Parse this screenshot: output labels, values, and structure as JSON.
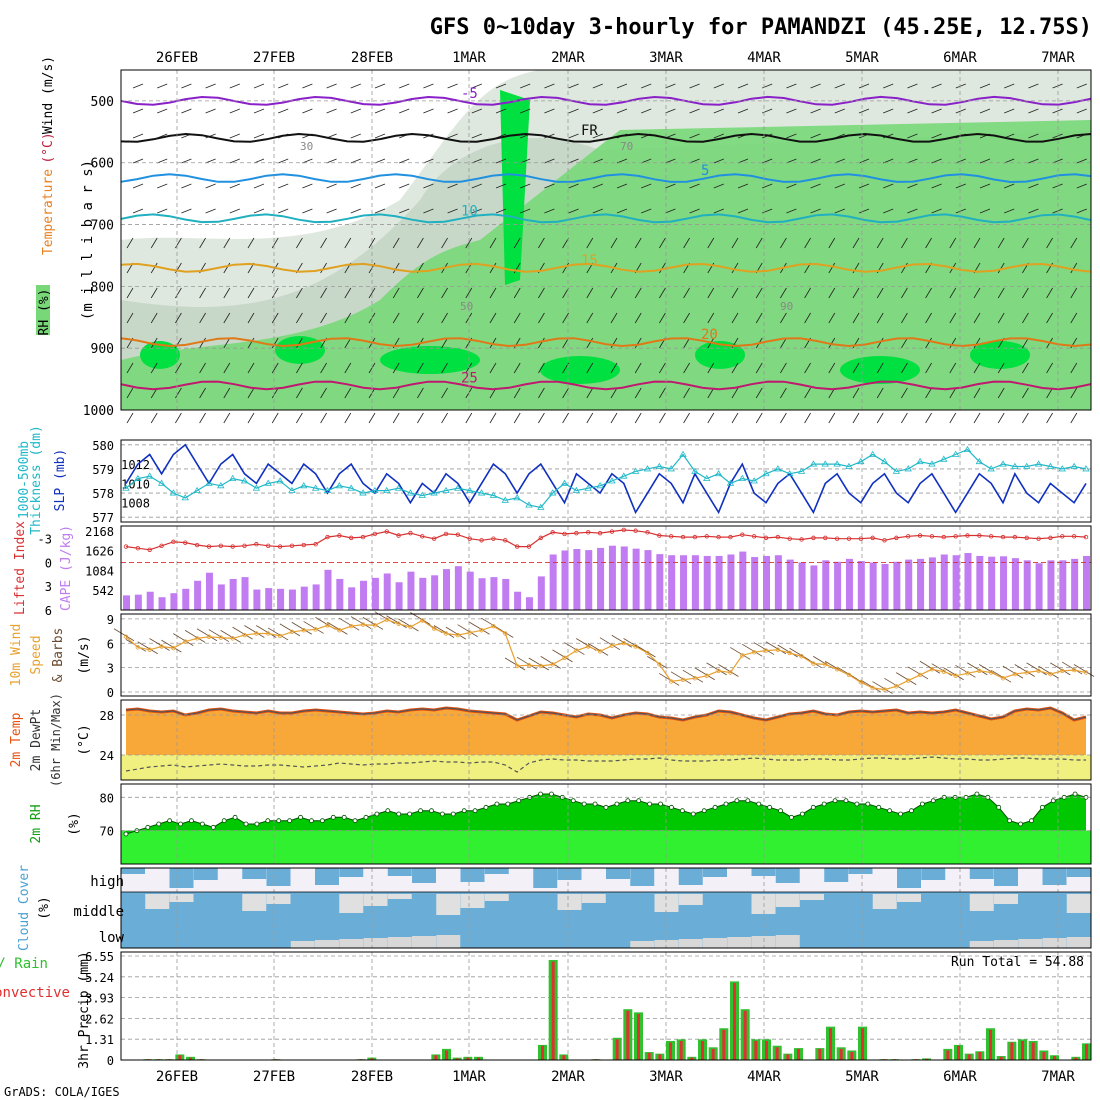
{
  "title": "GFS 0~10day 3-hourly for PAMANDZI (45.25E, 12.75S)",
  "footer": "GrADS: COLA/IGES",
  "colors": {
    "rh_light": "#c8d8c8",
    "rh_mid": "#78d878",
    "rh_high": "#00e040",
    "slp": "#1030c0",
    "thickness": "#20b8c8",
    "cape": "#c07cf0",
    "lifted": "#d83030",
    "wind10m": "#e8a030",
    "temp_fill": "#f8a838",
    "temp_top": "#e85010",
    "dew_fill": "#f0f080",
    "rh2m_fill": "#00c800",
    "rh2m_light": "#30f030",
    "cloud": "#6aaed8",
    "cloud_bg": "#f4f0f8",
    "precip_total": "#30c030",
    "precip_conv": "#e03030"
  },
  "chart_data": [
    {
      "type": "area",
      "panel": "upper-air",
      "ylabel": "(m i l l i b a r s)",
      "side_labels": [
        "RH (%)",
        "Temperature",
        "(°C)",
        "Wind (m/s)"
      ],
      "yticks": [
        500,
        600,
        700,
        800,
        900,
        1000
      ],
      "ylim": [
        450,
        1000
      ],
      "x_dates": [
        "26FEB",
        "27FEB",
        "28FEB",
        "1MAR",
        "2MAR",
        "3MAR",
        "4MAR",
        "5MAR",
        "6MAR",
        "7MAR"
      ],
      "isotherm_labels": [
        {
          "text": "-5",
          "level": 500
        },
        {
          "text": "FR",
          "level": 560
        },
        {
          "text": "5",
          "level": 625
        },
        {
          "text": "10",
          "level": 690
        },
        {
          "text": "15",
          "level": 770
        },
        {
          "text": "20",
          "level": 890
        },
        {
          "text": "25",
          "level": 960
        }
      ],
      "rh_labels": [
        "30",
        "50",
        "70",
        "90"
      ]
    },
    {
      "type": "line",
      "panel": "slp-thickness",
      "left_label": "1000-500mb Thickness (dm)",
      "right_label": "SLP (mb)",
      "left_ticks": [
        577,
        578,
        579,
        580
      ],
      "right_ticks": [
        1008,
        1010,
        1012
      ],
      "series": [
        {
          "name": "SLP (mb)",
          "values": [
            1010,
            1012,
            1013,
            1011,
            1013,
            1014,
            1012,
            1010,
            1012,
            1013,
            1011,
            1010,
            1012,
            1011,
            1010,
            1012,
            1011,
            1009,
            1011,
            1012,
            1010,
            1009,
            1011,
            1010,
            1008,
            1010,
            1009,
            1011,
            1010,
            1008,
            1010,
            1012,
            1011,
            1009,
            1011,
            1012,
            1010,
            1008,
            1011,
            1010,
            1009,
            1011,
            1010,
            1007,
            1009,
            1011,
            1010,
            1008,
            1011,
            1009,
            1007,
            1010,
            1012,
            1009,
            1008,
            1010,
            1011,
            1009,
            1007,
            1010,
            1011,
            1009,
            1008,
            1010,
            1011,
            1009,
            1008,
            1010,
            1011,
            1009,
            1007,
            1009,
            1011,
            1010,
            1008,
            1011,
            1009,
            1008,
            1010,
            1009,
            1008,
            1010
          ]
        },
        {
          "name": "Thickness (dm)",
          "values": [
            578.2,
            578.6,
            578.7,
            578.4,
            578.0,
            577.8,
            578.1,
            578.4,
            578.3,
            578.6,
            578.5,
            578.2,
            578.4,
            578.5,
            578.1,
            578.3,
            578.2,
            578.1,
            578.3,
            578.2,
            578.0,
            578.1,
            578.1,
            578.2,
            578.0,
            577.9,
            578.0,
            578.1,
            578.2,
            578.1,
            578.0,
            577.9,
            577.7,
            577.8,
            577.5,
            577.4,
            578.0,
            578.4,
            578.1,
            578.2,
            578.3,
            578.5,
            578.7,
            578.9,
            579.0,
            579.1,
            579.0,
            579.6,
            578.9,
            578.6,
            578.8,
            578.4,
            578.6,
            578.5,
            578.8,
            579.0,
            578.8,
            578.9,
            579.2,
            579.2,
            579.2,
            579.1,
            579.3,
            579.6,
            579.3,
            578.9,
            579.0,
            579.3,
            579.2,
            579.4,
            579.6,
            579.8,
            579.3,
            579.0,
            579.2,
            579.1,
            579.1,
            579.2,
            579.1,
            579.0,
            579.1,
            579.0
          ]
        }
      ]
    },
    {
      "type": "bar",
      "panel": "cape-lifted",
      "left_label": "Lifted Index",
      "right_label": "CAPE (J/kg)",
      "left_ticks": [
        -3,
        0,
        3,
        6
      ],
      "right_ticks": [
        542,
        1084,
        1626,
        2168
      ],
      "series": [
        {
          "name": "CAPE (J/kg)",
          "values": [
            400,
            420,
            500,
            350,
            460,
            580,
            800,
            1020,
            700,
            850,
            900,
            560,
            600,
            580,
            560,
            640,
            700,
            1100,
            850,
            620,
            800,
            880,
            1000,
            760,
            1050,
            880,
            950,
            1120,
            1200,
            1050,
            870,
            900,
            850,
            500,
            350,
            920,
            1520,
            1630,
            1670,
            1640,
            1700,
            1760,
            1740,
            1680,
            1640,
            1530,
            1500,
            1500,
            1500,
            1480,
            1480,
            1520,
            1600,
            1450,
            1480,
            1500,
            1380,
            1300,
            1220,
            1360,
            1320,
            1400,
            1340,
            1300,
            1260,
            1320,
            1380,
            1400,
            1440,
            1520,
            1500,
            1560,
            1480,
            1460,
            1470,
            1420,
            1360,
            1280,
            1360,
            1360,
            1400,
            1480
          ]
        },
        {
          "name": "Lifted Index",
          "values": [
            -2.0,
            -1.8,
            -1.6,
            -2.1,
            -2.6,
            -2.5,
            -2.2,
            -2.0,
            -2.1,
            -2.0,
            -2.1,
            -2.3,
            -2.1,
            -2.0,
            -2.1,
            -2.2,
            -2.3,
            -3.2,
            -3.4,
            -3.1,
            -3.2,
            -3.6,
            -3.9,
            -3.4,
            -3.7,
            -3.3,
            -3.0,
            -3.6,
            -3.5,
            -3.0,
            -2.8,
            -3.0,
            -2.8,
            -2.0,
            -2.0,
            -3.1,
            -3.8,
            -3.6,
            -3.7,
            -3.8,
            -3.7,
            -3.9,
            -4.1,
            -4.0,
            -3.8,
            -3.4,
            -3.3,
            -3.2,
            -3.2,
            -3.3,
            -3.2,
            -3.2,
            -3.5,
            -3.3,
            -3.1,
            -3.2,
            -3.0,
            -2.9,
            -3.1,
            -3.1,
            -3.0,
            -3.0,
            -3.0,
            -3.1,
            -2.8,
            -3.1,
            -3.3,
            -3.4,
            -3.3,
            -3.2,
            -3.3,
            -3.4,
            -3.4,
            -3.3,
            -3.2,
            -3.2,
            -3.1,
            -3.0,
            -3.1,
            -3.3,
            -3.3,
            -3.2
          ]
        }
      ]
    },
    {
      "type": "line",
      "panel": "wind-10m",
      "left_label": "10m Wind Speed & Barbs",
      "unit_label": "(m/s)",
      "yticks": [
        0,
        3,
        6,
        9
      ],
      "ylim": [
        0,
        9
      ],
      "series": [
        {
          "name": "10m Wind Speed",
          "values": [
            6.8,
            5.5,
            5.2,
            5.6,
            5.4,
            6.2,
            6.6,
            6.8,
            6.7,
            6.6,
            7.0,
            7.2,
            7.2,
            6.9,
            7.4,
            7.6,
            7.7,
            8.2,
            7.6,
            8.1,
            8.3,
            8.2,
            8.9,
            8.4,
            8.0,
            8.8,
            7.8,
            7.2,
            7.0,
            7.3,
            7.6,
            8.1,
            7.2,
            3.2,
            3.3,
            3.2,
            3.4,
            4.2,
            5.1,
            5.6,
            5.0,
            5.7,
            6.0,
            5.6,
            4.8,
            3.4,
            1.3,
            1.5,
            1.7,
            2.0,
            2.6,
            2.4,
            4.5,
            4.9,
            5.1,
            5.2,
            4.8,
            4.4,
            3.5,
            3.4,
            2.8,
            2.1,
            1.2,
            0.5,
            0.3,
            0.7,
            1.4,
            2.1,
            2.8,
            2.5,
            2.0,
            2.3,
            2.6,
            2.4,
            1.7,
            2.2,
            2.4,
            2.6,
            2.2,
            2.6,
            2.7,
            2.4
          ]
        }
      ]
    },
    {
      "type": "area",
      "panel": "temp-dewpoint",
      "left_label": "2m Temp 2m DewPt (6hr Min/Max)",
      "unit_label": "(°C)",
      "yticks": [
        24,
        28
      ],
      "ylim": [
        21.5,
        29.5
      ],
      "series": [
        {
          "name": "2m Temp",
          "values": [
            28.5,
            28.6,
            28.4,
            28.3,
            28.4,
            28.0,
            28.2,
            28.5,
            28.6,
            28.4,
            28.3,
            28.2,
            28.4,
            28.2,
            28.2,
            28.4,
            28.5,
            28.4,
            28.3,
            28.2,
            28.1,
            28.2,
            28.4,
            28.3,
            28.5,
            28.6,
            28.5,
            28.7,
            28.6,
            28.4,
            28.3,
            28.2,
            28.1,
            27.5,
            27.9,
            28.3,
            28.2,
            28.0,
            27.8,
            28.1,
            28.0,
            27.7,
            28.0,
            28.2,
            28.1,
            27.8,
            27.7,
            27.5,
            27.8,
            28.0,
            28.4,
            28.3,
            28.0,
            27.7,
            27.5,
            27.8,
            28.1,
            28.2,
            28.4,
            28.1,
            28.0,
            28.3,
            28.4,
            28.3,
            28.4,
            28.5,
            28.2,
            28.3,
            28.2,
            28.3,
            28.5,
            28.2,
            27.9,
            27.6,
            27.8,
            28.4,
            28.6,
            28.5,
            28.7,
            28.2,
            27.5,
            27.8
          ]
        },
        {
          "name": "2m DewPt",
          "values": [
            22.4,
            22.6,
            22.8,
            22.9,
            23.0,
            22.8,
            22.9,
            23.0,
            23.1,
            23.0,
            22.9,
            22.9,
            23.0,
            23.0,
            22.9,
            22.8,
            22.9,
            23.0,
            23.2,
            23.1,
            23.0,
            23.1,
            23.1,
            23.2,
            23.2,
            23.3,
            23.4,
            23.3,
            23.3,
            23.2,
            23.3,
            23.3,
            23.0,
            22.3,
            23.2,
            23.5,
            23.6,
            23.5,
            23.5,
            23.4,
            23.4,
            23.4,
            23.5,
            23.6,
            23.6,
            23.7,
            23.5,
            23.4,
            23.4,
            23.4,
            23.5,
            23.5,
            23.6,
            23.7,
            23.6,
            23.5,
            23.5,
            23.5,
            23.6,
            23.6,
            23.5,
            23.5,
            23.6,
            23.7,
            23.7,
            23.6,
            23.6,
            23.7,
            23.8,
            23.7,
            23.6,
            23.6,
            23.5,
            23.5,
            23.6,
            23.7,
            23.7,
            23.6,
            23.6,
            23.6,
            23.5,
            23.5
          ]
        }
      ]
    },
    {
      "type": "area",
      "panel": "rh-2m",
      "left_label": "2m RH",
      "unit_label": "(%)",
      "yticks": [
        70,
        80
      ],
      "ylim": [
        60,
        84
      ],
      "series": [
        {
          "name": "2m RH",
          "values": [
            69,
            70,
            71,
            72,
            73,
            72,
            73,
            72,
            71,
            73,
            74,
            72,
            72,
            73,
            73,
            73,
            74,
            73,
            73,
            74,
            74,
            73,
            74,
            75,
            76,
            75,
            75,
            76,
            76,
            75,
            75,
            76,
            76,
            77,
            78,
            78,
            79,
            80,
            81,
            81,
            80,
            79,
            78,
            78,
            77,
            78,
            79,
            79,
            78,
            78,
            77,
            76,
            75,
            76,
            77,
            78,
            79,
            79,
            78,
            77,
            76,
            74,
            75,
            77,
            78,
            79,
            79,
            78,
            78,
            77,
            76,
            75,
            76,
            78,
            79,
            80,
            80,
            80,
            81,
            80,
            77,
            73,
            72,
            73,
            77,
            79,
            80,
            81,
            80
          ]
        }
      ]
    },
    {
      "type": "bar",
      "panel": "cloud-cover",
      "left_label": "Cloud Cover",
      "unit_label": "(%)",
      "row_labels": [
        "high",
        "middle",
        "low"
      ]
    },
    {
      "type": "bar",
      "panel": "precip",
      "left_label": "Total / Rain Convective",
      "unit_label": "3hr Precip (mm)",
      "yticks": [
        0,
        1.31,
        2.62,
        3.93,
        5.24,
        6.55
      ],
      "ylim": [
        0,
        6.55
      ],
      "annotation": "Run Total = 54.88",
      "series": [
        {
          "name": "Total",
          "values": [
            0,
            0,
            0.05,
            0.05,
            0.05,
            0.35,
            0.2,
            0.05,
            0,
            0,
            0,
            0,
            0,
            0,
            0.05,
            0,
            0,
            0,
            0,
            0,
            0,
            0,
            0.05,
            0.15,
            0,
            0,
            0,
            0,
            0,
            0.35,
            0.7,
            0.15,
            0.2,
            0.2,
            0,
            0,
            0,
            0,
            0,
            0.95,
            6.3,
            0.35,
            0,
            0,
            0.05,
            0,
            1.4,
            3.2,
            3.0,
            0.5,
            0.4,
            1.2,
            1.3,
            0.2,
            1.3,
            0.8,
            2.0,
            4.95,
            3.2,
            1.3,
            1.3,
            0.9,
            0.4,
            0.75,
            0,
            0.75,
            2.1,
            0.8,
            0.6,
            2.1,
            0,
            0.05,
            0.05,
            0,
            0.05,
            0.1,
            0,
            0.7,
            0.95,
            0.4,
            0.55,
            2.0,
            0.25,
            1.15,
            1.3,
            1.2,
            0.6,
            0.3,
            0,
            0.2,
            1.05
          ]
        },
        {
          "name": "Convective",
          "values": [
            0,
            0,
            0.05,
            0.05,
            0.05,
            0.3,
            0.15,
            0.05,
            0,
            0,
            0,
            0,
            0,
            0,
            0.05,
            0,
            0,
            0,
            0,
            0,
            0,
            0,
            0.05,
            0.1,
            0,
            0,
            0,
            0,
            0,
            0.3,
            0.6,
            0.1,
            0.15,
            0.15,
            0,
            0,
            0,
            0,
            0,
            0.9,
            6.2,
            0.3,
            0,
            0,
            0.05,
            0,
            1.3,
            3.1,
            2.9,
            0.45,
            0.35,
            1.1,
            1.2,
            0.15,
            1.2,
            0.7,
            1.9,
            4.85,
            3.1,
            1.2,
            1.2,
            0.8,
            0.35,
            0.7,
            0,
            0.7,
            2.0,
            0.7,
            0.5,
            2.0,
            0,
            0.05,
            0.05,
            0,
            0.05,
            0.08,
            0,
            0.6,
            0.9,
            0.35,
            0.5,
            1.9,
            0.2,
            1.1,
            1.2,
            1.1,
            0.5,
            0.25,
            0,
            0.15,
            1.0
          ]
        }
      ]
    }
  ]
}
